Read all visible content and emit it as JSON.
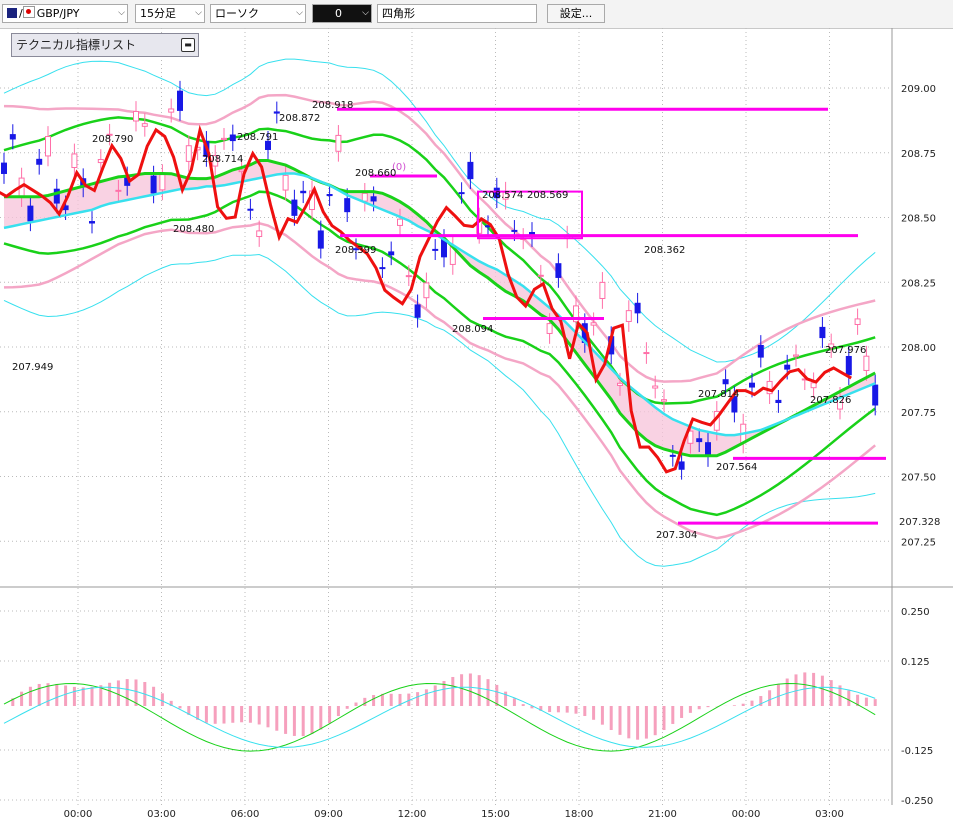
{
  "toolbar": {
    "pair": "GBP/JPY",
    "timeframe": "15分足",
    "chart_style": "ローソク",
    "tool_value": "0",
    "shape": "四角形",
    "settings": "設定..."
  },
  "indicator_list": "テクニカル指標リスト",
  "colors": {
    "up_candle": "#ff6fa8",
    "down_candle": "#1818e6",
    "red_line": "#ee1010",
    "green_band": "#19d119",
    "cyan_line": "#38e0ee",
    "pink_band": "#f4a6c6",
    "magenta_line": "#ff00ee"
  },
  "chart_data": [
    {
      "type": "line",
      "price_axis": {
        "ticks": [
          "209.00",
          "208.75",
          "208.50",
          "208.25",
          "208.00",
          "207.75",
          "207.50",
          "207.25"
        ],
        "tick_values": [
          209.0,
          208.75,
          208.5,
          208.25,
          208.0,
          207.75,
          207.5,
          207.25
        ],
        "current_price_label": "207.328",
        "ylim": [
          207.13,
          209.24
        ]
      },
      "time_axis": {
        "ticks": [
          "00:00",
          "03:00",
          "06:00",
          "09:00",
          "12:00",
          "15:00",
          "18:00",
          "21:00",
          "00:00",
          "03:00"
        ]
      },
      "price_labels": [
        {
          "text": "208.790",
          "time": "02:45",
          "price": 208.79
        },
        {
          "text": "208.714",
          "time": "05:30",
          "price": 208.714
        },
        {
          "text": "208.791",
          "time": "07:00",
          "price": 208.791
        },
        {
          "text": "208.872",
          "time": "08:15",
          "price": 208.872
        },
        {
          "text": "208.918",
          "time": "09:15",
          "price": 208.918
        },
        {
          "text": "208.480",
          "time": "03:45",
          "price": 208.48
        },
        {
          "text": "208.660",
          "time": "11:00",
          "price": 208.66
        },
        {
          "text": "208.399",
          "time": "10:15",
          "price": 208.399
        },
        {
          "text": "208.574",
          "time": "15:15",
          "price": 208.574
        },
        {
          "text": "208.569",
          "time": "16:45",
          "price": 208.569
        },
        {
          "text": "208.094",
          "time": "14:15",
          "price": 208.094
        },
        {
          "text": "208.362",
          "time": "21:00",
          "price": 208.362
        },
        {
          "text": "207.949",
          "time": "23:15",
          "price": 207.949
        },
        {
          "text": "207.814",
          "time": "23:45",
          "price": 207.814
        },
        {
          "text": "207.564",
          "time": "00:00",
          "price": 207.564
        },
        {
          "text": "207.304",
          "time": "21:30",
          "price": 207.304
        },
        {
          "text": "207.976",
          "time": "03:00",
          "price": 207.976
        },
        {
          "text": "207.826",
          "time": "02:45",
          "price": 207.826
        }
      ],
      "marker_label": "(0)",
      "horizontal_lines": [
        208.918,
        208.66,
        208.43,
        208.11,
        207.57,
        207.32
      ],
      "rectangle": {
        "price_top": 208.6,
        "price_bottom": 208.42
      },
      "series": [
        {
          "values": [
            208.66,
            208.62,
            208.6,
            208.58,
            208.61,
            208.63,
            208.6,
            208.58,
            208.55,
            208.5,
            208.62,
            208.7,
            208.58,
            208.62,
            208.75,
            208.8,
            208.66,
            208.62,
            208.72,
            208.85,
            208.82,
            208.8,
            208.6,
            208.62,
            208.85,
            208.8,
            208.55,
            208.5,
            208.48,
            208.66,
            208.75,
            208.7,
            208.55,
            208.42,
            208.5,
            208.48,
            208.55,
            208.62,
            208.5,
            208.46,
            208.44,
            208.4,
            208.38,
            208.35,
            208.28,
            208.18,
            208.2,
            208.14,
            208.3,
            208.4,
            208.44,
            208.55,
            208.52,
            208.48,
            208.45,
            208.5,
            208.48,
            208.45,
            208.3,
            208.2,
            208.15,
            208.22,
            208.25,
            208.15,
            208.1,
            207.95,
            208.1,
            208.05,
            207.85,
            207.95,
            208.1,
            208.08,
            207.65,
            207.6,
            207.62,
            207.55,
            207.5,
            207.55,
            207.7,
            207.74,
            207.68,
            207.72,
            207.76,
            207.82,
            207.85,
            207.8,
            207.85,
            207.82,
            207.86,
            207.9,
            207.92,
            207.88,
            207.86,
            207.9,
            207.92,
            207.9,
            207.88
          ]
        },
        {
          "values": [
            208.58,
            208.58,
            208.58,
            208.58,
            208.58,
            208.59,
            208.6,
            208.61,
            208.62,
            208.63,
            208.64,
            208.65,
            208.66,
            208.66,
            208.67,
            208.67,
            208.67,
            208.67,
            208.66,
            208.65,
            208.65,
            208.65,
            208.66,
            208.68,
            208.69,
            208.7,
            208.72,
            208.72,
            208.71,
            208.7,
            208.68,
            208.66,
            208.64,
            208.63,
            208.61,
            208.6,
            208.6,
            208.6,
            208.6,
            208.59,
            208.57,
            208.55,
            208.52,
            208.49,
            208.45,
            208.42,
            208.38,
            208.34,
            208.3,
            208.28,
            208.25,
            208.22,
            208.2,
            208.18,
            208.15,
            208.12,
            208.1,
            208.05,
            208.0,
            207.95,
            207.9,
            207.85,
            207.8,
            207.74,
            207.7,
            207.66,
            207.63,
            207.61,
            207.6,
            207.59,
            207.58,
            207.58,
            207.58,
            207.58,
            207.6,
            207.62,
            207.64,
            207.66,
            207.68,
            207.7,
            207.72,
            207.74,
            207.76,
            207.78,
            207.8,
            207.82,
            207.84,
            207.86,
            207.88,
            207.9
          ]
        },
        {
          "values": [
            208.46,
            208.47,
            208.48,
            208.49,
            208.5,
            208.51,
            208.52,
            208.53,
            208.55,
            208.56,
            208.57,
            208.58,
            208.59,
            208.6,
            208.61,
            208.61,
            208.62,
            208.62,
            208.63,
            208.64,
            208.65,
            208.66,
            208.67,
            208.67,
            208.66,
            208.64,
            208.62,
            208.59,
            208.57,
            208.55,
            208.53,
            208.51,
            208.49,
            208.46,
            208.44,
            208.41,
            208.38,
            208.35,
            208.32,
            208.3,
            208.27,
            208.24,
            208.2,
            208.16,
            208.12,
            208.07,
            208.02,
            207.97,
            207.92,
            207.87,
            207.83,
            207.79,
            207.75,
            207.72,
            207.7,
            207.68,
            207.67,
            207.66,
            207.66,
            207.67,
            207.68,
            207.7,
            207.72,
            207.74,
            207.76,
            207.78,
            207.8,
            207.82,
            207.84,
            207.86
          ]
        }
      ]
    },
    {
      "type": "bar",
      "axis": {
        "ticks": [
          "0.250",
          "0.125",
          "-0.125",
          "-0.250"
        ],
        "tick_values": [
          0.25,
          0.125,
          -0.125,
          -0.25
        ],
        "ylim": [
          -0.275,
          0.35
        ]
      }
    }
  ]
}
